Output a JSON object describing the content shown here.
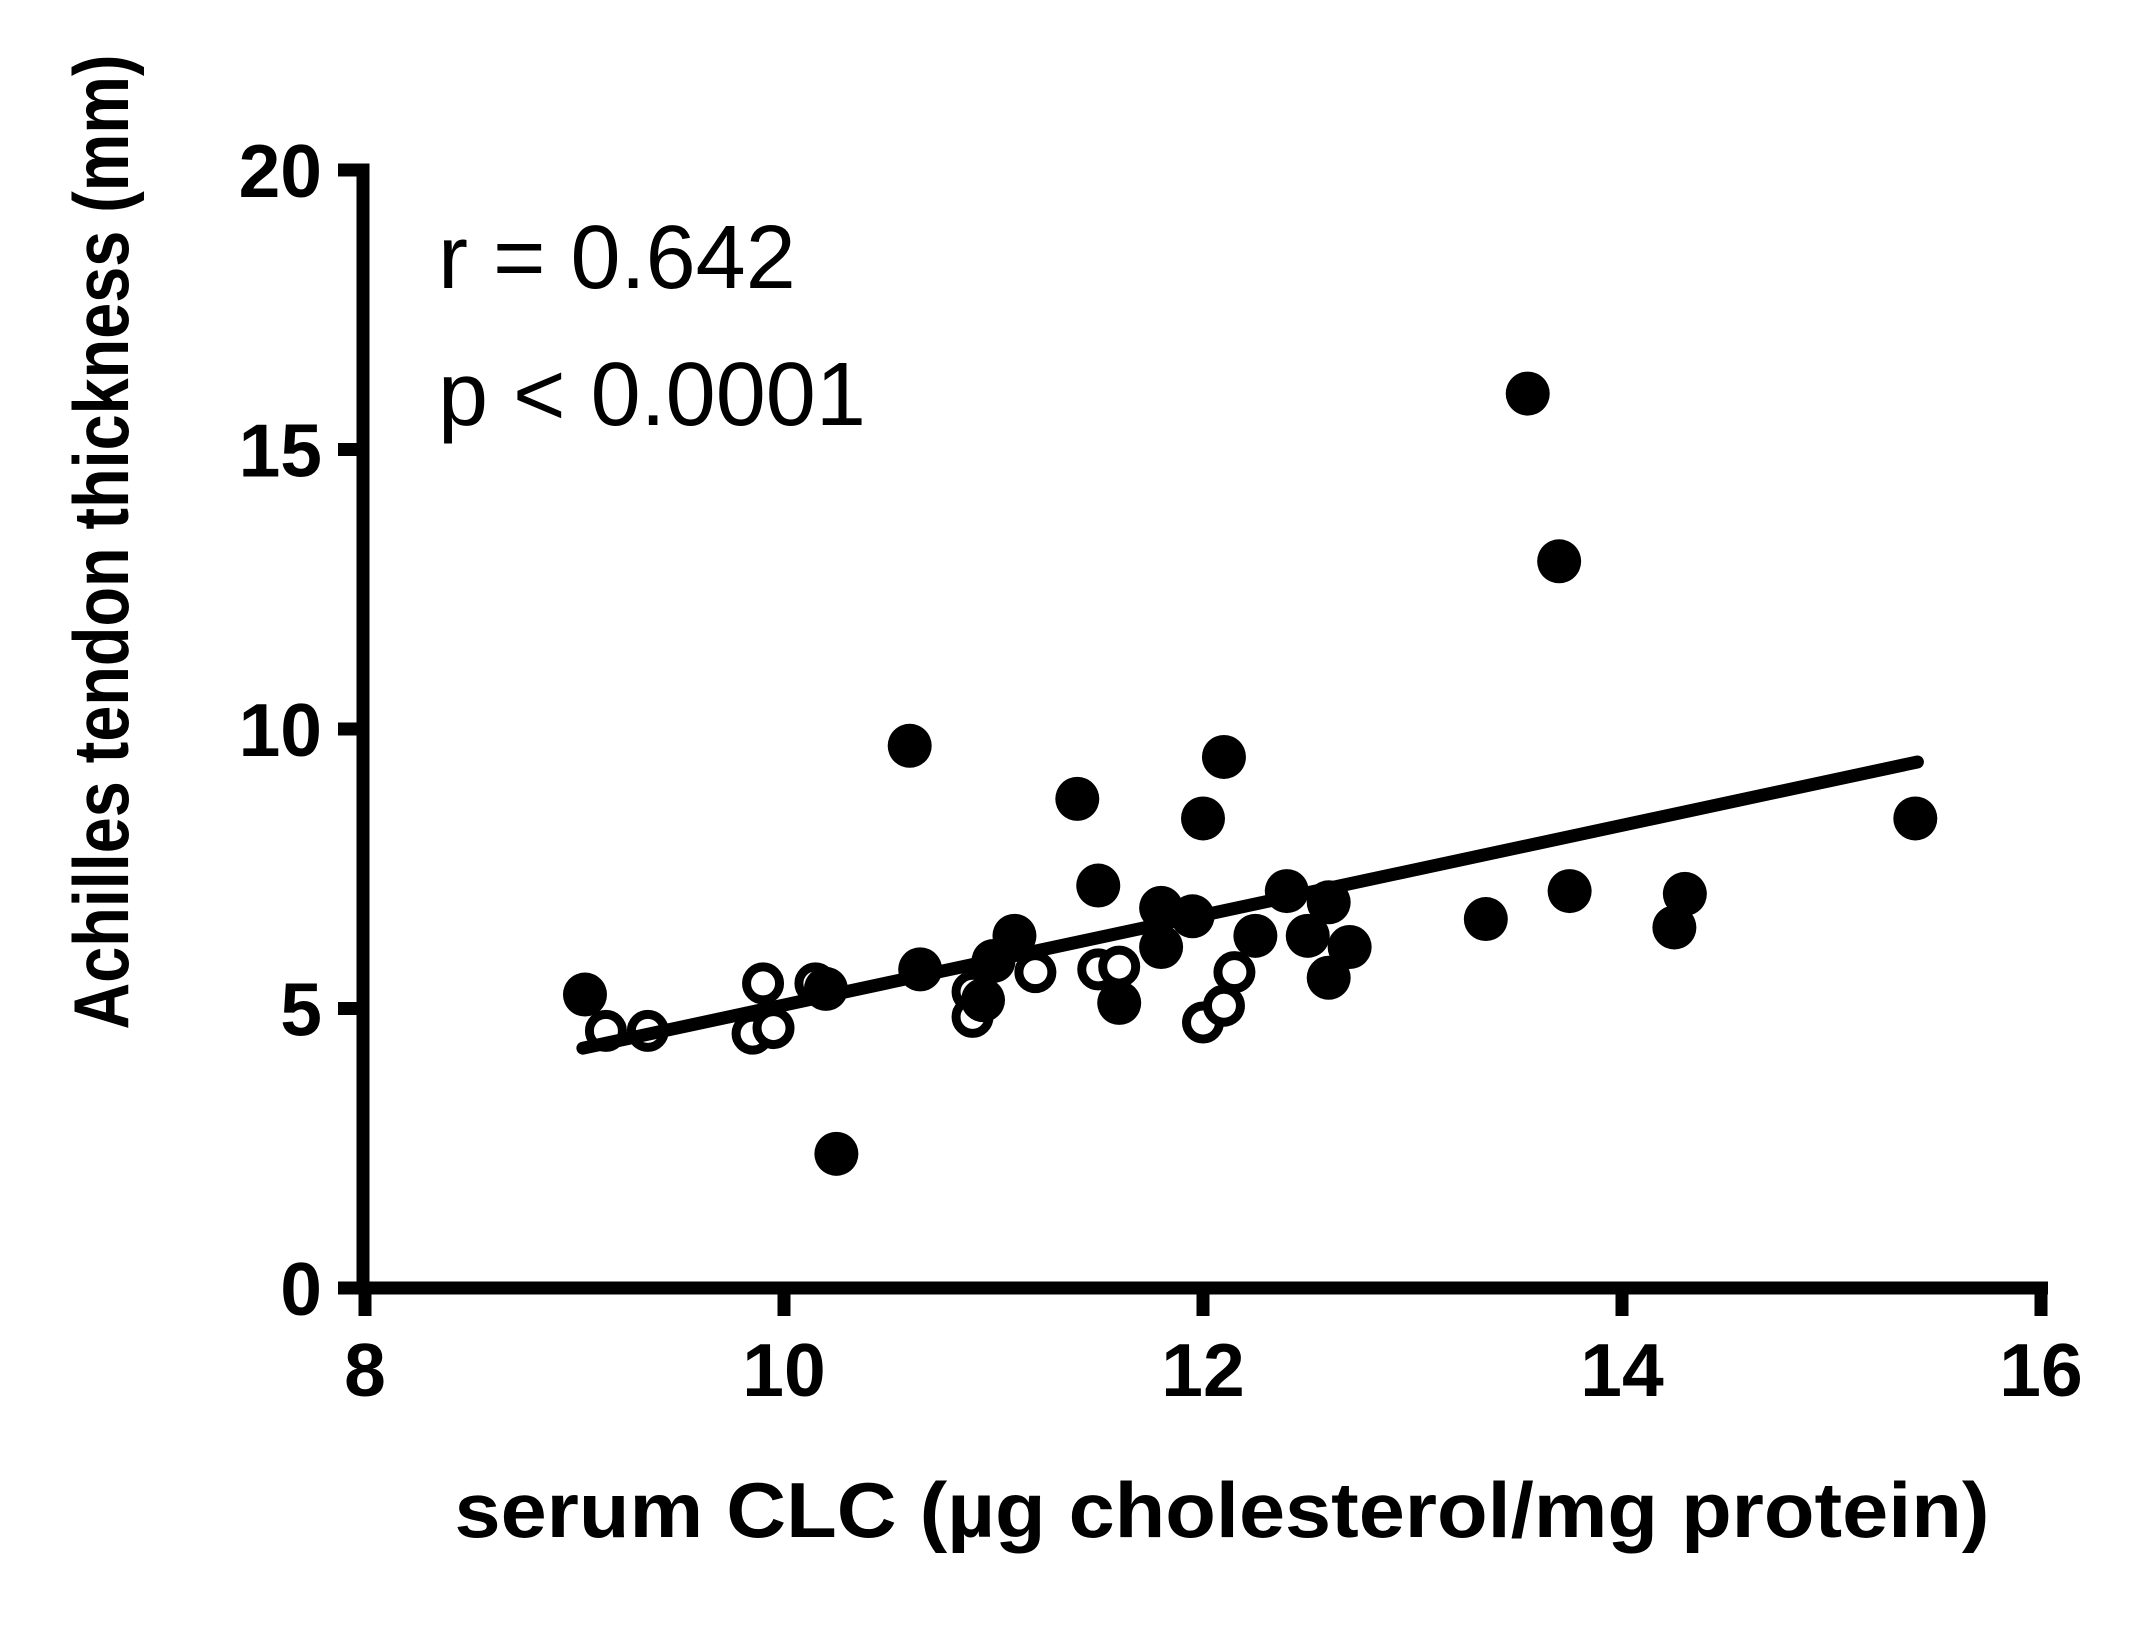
{
  "chart_data": {
    "type": "scatter",
    "title": "",
    "xlabel": "serum CLC (µg cholesterol/mg protein)",
    "ylabel": "Achilles tendon thickness (mm)",
    "xlim": [
      8,
      16
    ],
    "ylim": [
      0,
      20
    ],
    "x_ticks": [
      "8",
      "10",
      "12",
      "14",
      "16"
    ],
    "x_tick_values": [
      8,
      10,
      12,
      14,
      16
    ],
    "y_ticks": [
      "0",
      "5",
      "10",
      "15",
      "20"
    ],
    "y_tick_values": [
      0,
      5,
      10,
      15,
      20
    ],
    "grid": false,
    "legend": "none",
    "annotation": {
      "line1": "r = 0.642",
      "line2": "p < 0.0001"
    },
    "series": [
      {
        "name": "filled-circles",
        "marker": "filled-circle",
        "points": [
          [
            9.05,
            5.25
          ],
          [
            10.2,
            5.35
          ],
          [
            10.25,
            2.4
          ],
          [
            10.6,
            9.7
          ],
          [
            10.65,
            5.7
          ],
          [
            10.95,
            5.15
          ],
          [
            11.0,
            5.85
          ],
          [
            11.1,
            6.3
          ],
          [
            11.4,
            8.75
          ],
          [
            11.5,
            7.2
          ],
          [
            11.6,
            5.1
          ],
          [
            11.8,
            6.1
          ],
          [
            11.8,
            6.8
          ],
          [
            11.95,
            6.65
          ],
          [
            12.0,
            8.4
          ],
          [
            12.1,
            9.5
          ],
          [
            12.25,
            6.3
          ],
          [
            12.4,
            7.1
          ],
          [
            12.5,
            6.3
          ],
          [
            12.6,
            6.9
          ],
          [
            12.6,
            5.55
          ],
          [
            12.7,
            6.1
          ],
          [
            13.35,
            6.6
          ],
          [
            13.55,
            16.0
          ],
          [
            13.7,
            13.0
          ],
          [
            13.75,
            7.1
          ],
          [
            14.25,
            6.45
          ],
          [
            14.3,
            7.05
          ],
          [
            15.4,
            8.4
          ]
        ]
      },
      {
        "name": "open-circles",
        "marker": "open-circle",
        "points": [
          [
            9.15,
            4.6
          ],
          [
            9.35,
            4.6
          ],
          [
            9.85,
            4.55
          ],
          [
            9.9,
            5.45
          ],
          [
            9.95,
            4.65
          ],
          [
            10.15,
            5.45
          ],
          [
            10.9,
            5.3
          ],
          [
            10.9,
            4.85
          ],
          [
            11.2,
            5.65
          ],
          [
            11.5,
            5.7
          ],
          [
            11.6,
            5.75
          ],
          [
            12.0,
            4.75
          ],
          [
            12.1,
            5.05
          ],
          [
            12.15,
            5.65
          ]
        ]
      }
    ],
    "regression_line": {
      "x1": 9.04,
      "y1": 4.29,
      "x2": 15.41,
      "y2": 9.41
    },
    "colors": {
      "foreground": "#000000",
      "background": "#ffffff"
    }
  }
}
